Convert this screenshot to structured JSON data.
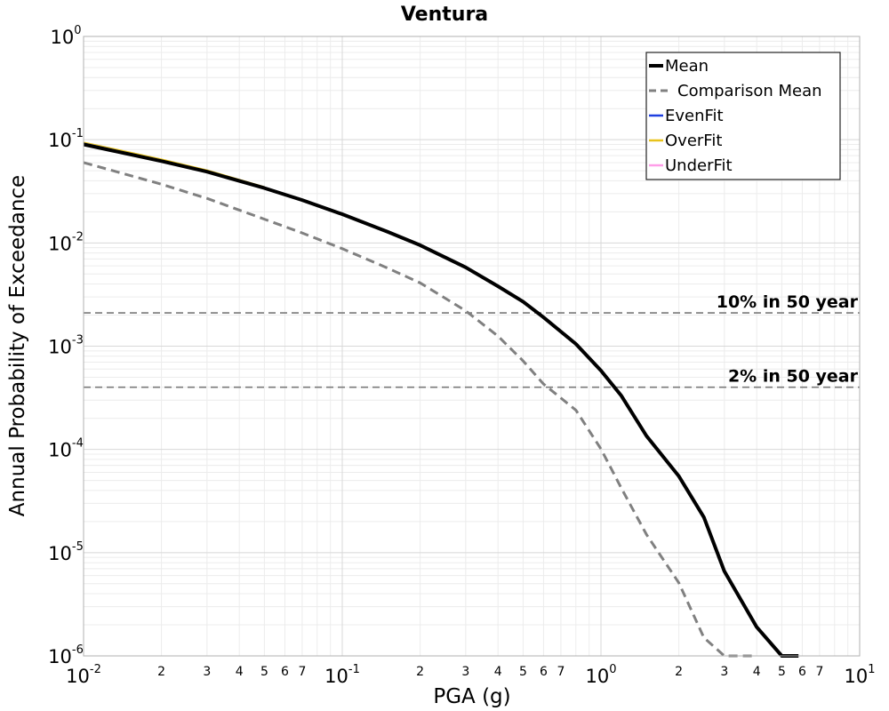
{
  "chart_data": {
    "type": "line",
    "title": "Ventura",
    "xlabel": "PGA (g)",
    "ylabel": "Annual Probability of Exceedance",
    "x_scale": "log",
    "y_scale": "log",
    "xlim": [
      0.01,
      10
    ],
    "ylim": [
      1e-06,
      1
    ],
    "grid": true,
    "legend_position": "top-right",
    "x_major_ticks": [
      {
        "base": "10",
        "exp": "-2",
        "value": 0.01
      },
      {
        "base": "10",
        "exp": "-1",
        "value": 0.1
      },
      {
        "base": "10",
        "exp": "0",
        "value": 1
      },
      {
        "base": "10",
        "exp": "1",
        "value": 10
      }
    ],
    "y_major_ticks": [
      {
        "base": "10",
        "exp": "0",
        "value": 1
      },
      {
        "base": "10",
        "exp": "-1",
        "value": 0.1
      },
      {
        "base": "10",
        "exp": "-2",
        "value": 0.01
      },
      {
        "base": "10",
        "exp": "-3",
        "value": 0.001
      },
      {
        "base": "10",
        "exp": "-4",
        "value": 0.0001
      },
      {
        "base": "10",
        "exp": "-5",
        "value": 1e-05
      },
      {
        "base": "10",
        "exp": "-6",
        "value": 1e-06
      }
    ],
    "x_minor_tick_labels": [
      {
        "label": "2",
        "value": 0.02
      },
      {
        "label": "3",
        "value": 0.03
      },
      {
        "label": "4",
        "value": 0.04
      },
      {
        "label": "5",
        "value": 0.05
      },
      {
        "label": "6",
        "value": 0.06
      },
      {
        "label": "7",
        "value": 0.07
      },
      {
        "label": "2",
        "value": 0.2
      },
      {
        "label": "3",
        "value": 0.3
      },
      {
        "label": "4",
        "value": 0.4
      },
      {
        "label": "5",
        "value": 0.5
      },
      {
        "label": "6",
        "value": 0.6
      },
      {
        "label": "7",
        "value": 0.7
      },
      {
        "label": "2",
        "value": 2
      },
      {
        "label": "3",
        "value": 3
      },
      {
        "label": "4",
        "value": 4
      },
      {
        "label": "5",
        "value": 5
      },
      {
        "label": "6",
        "value": 6
      },
      {
        "label": "7",
        "value": 7
      }
    ],
    "series": [
      {
        "name": "Mean",
        "color": "#000000",
        "style": "solid",
        "x": [
          0.01,
          0.02,
          0.03,
          0.05,
          0.07,
          0.1,
          0.15,
          0.2,
          0.3,
          0.4,
          0.5,
          0.6,
          0.8,
          1.0,
          1.2,
          1.5,
          2.0,
          2.5,
          3.0,
          4.0,
          5.0,
          5.8
        ],
        "y": [
          0.09,
          0.062,
          0.049,
          0.034,
          0.026,
          0.019,
          0.0128,
          0.0095,
          0.0058,
          0.0038,
          0.0027,
          0.0019,
          0.00105,
          0.00058,
          0.00033,
          0.000135,
          5.5e-05,
          2.2e-05,
          6.6e-06,
          1.9e-06,
          1e-06,
          7.5e-07
        ]
      },
      {
        "name": "Comparison Mean",
        "color": "#808080",
        "style": "dashed",
        "x": [
          0.01,
          0.02,
          0.03,
          0.05,
          0.07,
          0.1,
          0.15,
          0.2,
          0.3,
          0.4,
          0.5,
          0.6,
          0.8,
          1.0,
          1.2,
          1.5,
          2.0,
          2.5,
          3.0,
          4.0
        ],
        "y": [
          0.06,
          0.037,
          0.027,
          0.017,
          0.0125,
          0.0088,
          0.0057,
          0.0041,
          0.0022,
          0.00125,
          0.00072,
          0.00043,
          0.00024,
          0.000101,
          4.2e-05,
          1.5e-05,
          5.1e-06,
          1.5e-06,
          1e-06,
          7.5e-07
        ]
      },
      {
        "name": "EvenFit",
        "color": "#1f3fe0",
        "style": "solid",
        "x": [
          0.01,
          0.02,
          0.03,
          0.05
        ],
        "y": [
          0.092,
          0.063,
          0.0495,
          0.0343
        ]
      },
      {
        "name": "OverFit",
        "color": "#e8c31c",
        "style": "solid",
        "x": [
          0.01,
          0.02,
          0.03,
          0.05
        ],
        "y": [
          0.094,
          0.0645,
          0.0505,
          0.0348
        ]
      },
      {
        "name": "UnderFit",
        "color": "#ff9ee8",
        "style": "solid",
        "x": [
          0.01,
          0.02,
          0.03,
          0.05
        ],
        "y": [
          0.091,
          0.0625,
          0.0492,
          0.0341
        ]
      }
    ],
    "reference_lines": [
      {
        "label": "10% in 50 year",
        "y": 0.0021
      },
      {
        "label": "2% in 50 year",
        "y": 0.0004
      }
    ]
  }
}
